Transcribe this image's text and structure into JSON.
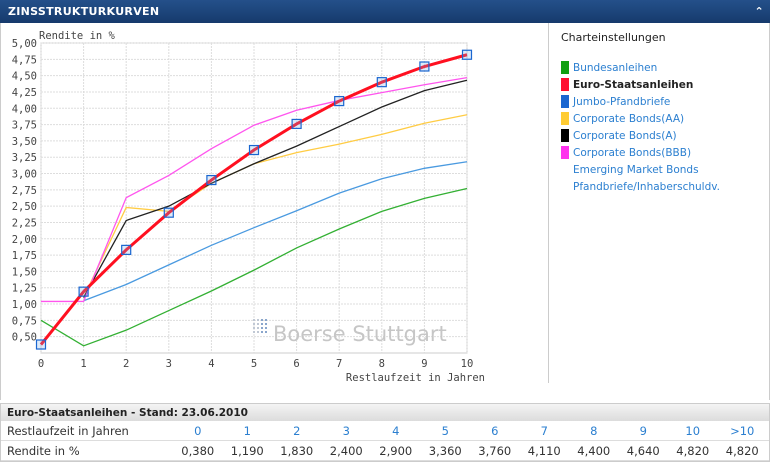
{
  "header": {
    "title": "ZINSSTRUKTURKURVEN",
    "collapse_icon": "chevron-up-icon"
  },
  "sidebar": {
    "title": "Charteinstellungen",
    "items": [
      {
        "label": "Bundesanleihen",
        "color": "#11a011",
        "active": false
      },
      {
        "label": "Euro-Staatsanleihen",
        "color": "#ff1030",
        "active": true
      },
      {
        "label": "Jumbo-Pfandbriefe",
        "color": "#1a66d0",
        "active": false
      },
      {
        "label": "Corporate Bonds(AA)",
        "color": "#ffcc33",
        "active": false
      },
      {
        "label": "Corporate Bonds(A)",
        "color": "#000000",
        "active": false
      },
      {
        "label": "Corporate Bonds(BBB)",
        "color": "#ff33ee",
        "active": false
      },
      {
        "label": "Emerging Market Bonds",
        "color": null,
        "active": false
      },
      {
        "label": "Pfandbriefe/Inhaberschuldv.",
        "color": null,
        "active": false
      }
    ]
  },
  "chart_data": {
    "type": "line",
    "ylabel": "Rendite in %",
    "xlabel": "Restlaufzeit in Jahren",
    "watermark": "Boerse Stuttgart",
    "x": [
      0,
      1,
      2,
      3,
      4,
      5,
      6,
      7,
      8,
      9,
      10
    ],
    "ylim": [
      0.25,
      5.0
    ],
    "xlim": [
      0,
      10
    ],
    "yticks": [
      "0,50",
      "0,75",
      "1,00",
      "1,25",
      "1,50",
      "1,75",
      "2,00",
      "2,25",
      "2,50",
      "2,75",
      "3,00",
      "3,25",
      "3,50",
      "3,75",
      "4,00",
      "4,25",
      "4,50",
      "4,75",
      "5,00"
    ],
    "xticks": [
      "0",
      "1",
      "2",
      "3",
      "4",
      "5",
      "6",
      "7",
      "8",
      "9",
      "10"
    ],
    "grid": true,
    "series": [
      {
        "name": "Bundesanleihen",
        "color": "#33b033",
        "values": [
          0.75,
          0.36,
          0.6,
          0.9,
          1.2,
          1.52,
          1.86,
          2.15,
          2.42,
          2.62,
          2.77
        ]
      },
      {
        "name": "Jumbo-Pfandbriefe",
        "color": "#4a9ae0",
        "values": [
          null,
          1.05,
          1.3,
          1.6,
          1.9,
          2.17,
          2.43,
          2.7,
          2.92,
          3.08,
          3.18
        ]
      },
      {
        "name": "Corporate Bonds(AA)",
        "color": "#ffcc44",
        "values": [
          null,
          1.1,
          2.48,
          2.42,
          2.85,
          3.15,
          3.32,
          3.45,
          3.6,
          3.77,
          3.9
        ]
      },
      {
        "name": "Corporate Bonds(A)",
        "color": "#222222",
        "values": [
          null,
          1.1,
          2.28,
          2.5,
          2.85,
          3.15,
          3.42,
          3.72,
          4.02,
          4.27,
          4.43
        ]
      },
      {
        "name": "Corporate Bonds(BBB)",
        "color": "#ff55ee",
        "values": [
          1.04,
          1.04,
          2.63,
          2.97,
          3.38,
          3.74,
          3.97,
          4.12,
          4.24,
          4.36,
          4.47
        ]
      },
      {
        "name": "Euro-Staatsanleihen",
        "color": "#ff1020",
        "values": [
          0.38,
          1.19,
          1.83,
          2.4,
          2.9,
          3.36,
          3.76,
          4.11,
          4.4,
          4.64,
          4.82
        ],
        "markers": true
      }
    ]
  },
  "table": {
    "title": "Euro-Staatsanleihen - Stand: 23.06.2010",
    "row1_label": "Restlaufzeit in Jahren",
    "cols": [
      "0",
      "1",
      "2",
      "3",
      "4",
      "5",
      "6",
      "7",
      "8",
      "9",
      "10",
      ">10"
    ],
    "row2_label": "Rendite in %",
    "values": [
      "0,380",
      "1,190",
      "1,830",
      "2,400",
      "2,900",
      "3,360",
      "3,760",
      "4,110",
      "4,400",
      "4,640",
      "4,820",
      "4,820"
    ]
  }
}
